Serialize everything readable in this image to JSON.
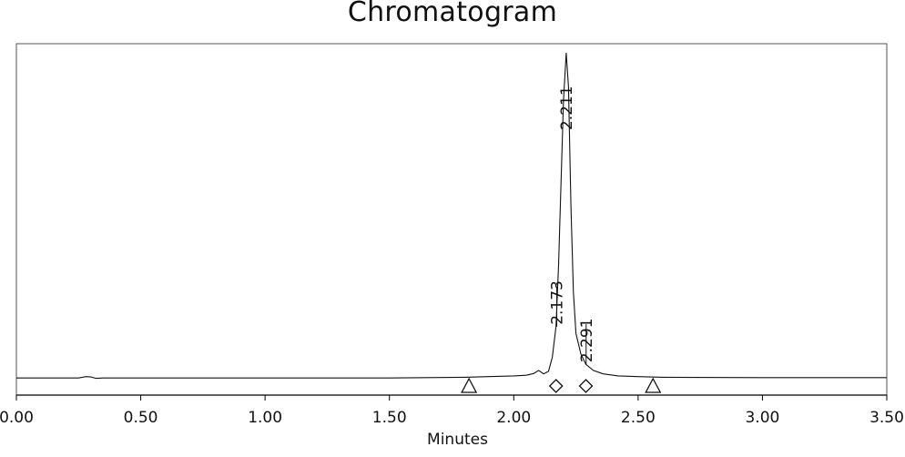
{
  "chart_data": {
    "type": "line",
    "title": "Chromatogram",
    "xlabel": "Minutes",
    "ylabel": "",
    "xlim": [
      0.0,
      3.5
    ],
    "ylim": [
      0.0,
      1.0
    ],
    "x_ticks": [
      "0.00",
      "0.50",
      "1.00",
      "1.50",
      "2.00",
      "2.50",
      "3.00",
      "3.50"
    ],
    "x_tick_values": [
      0.0,
      0.5,
      1.0,
      1.5,
      2.0,
      2.5,
      3.0,
      3.5
    ],
    "grid": false,
    "y_axis_shown": false,
    "series": [
      {
        "x": [
          0.0,
          0.25,
          0.28,
          0.3,
          0.32,
          0.35,
          0.5,
          1.0,
          1.5,
          1.8,
          1.9,
          2.0,
          2.05,
          2.08,
          2.1,
          2.12,
          2.14,
          2.155,
          2.17,
          2.18,
          2.19,
          2.2,
          2.211,
          2.22,
          2.23,
          2.24,
          2.25,
          2.27,
          2.29,
          2.32,
          2.36,
          2.42,
          2.5,
          2.6,
          3.0,
          3.5
        ],
        "y": [
          0.05,
          0.05,
          0.054,
          0.053,
          0.049,
          0.05,
          0.05,
          0.05,
          0.05,
          0.052,
          0.054,
          0.056,
          0.058,
          0.063,
          0.072,
          0.062,
          0.07,
          0.11,
          0.2,
          0.38,
          0.62,
          0.86,
          1.0,
          0.9,
          0.55,
          0.3,
          0.18,
          0.12,
          0.09,
          0.072,
          0.062,
          0.056,
          0.054,
          0.052,
          0.051,
          0.051
        ]
      }
    ],
    "peak_labels": [
      {
        "x": 2.211,
        "y": 1.0,
        "text": "2.211"
      },
      {
        "x": 2.173,
        "y": 0.2,
        "text": "2.173"
      },
      {
        "x": 2.291,
        "y": 0.09,
        "text": "2.291"
      }
    ],
    "markers": [
      {
        "x": 1.82,
        "shape": "triangle"
      },
      {
        "x": 2.17,
        "shape": "diamond"
      },
      {
        "x": 2.29,
        "shape": "diamond"
      },
      {
        "x": 2.56,
        "shape": "triangle"
      }
    ],
    "colors": {
      "line": "#000000",
      "axis": "#000000",
      "background": "#ffffff"
    }
  }
}
